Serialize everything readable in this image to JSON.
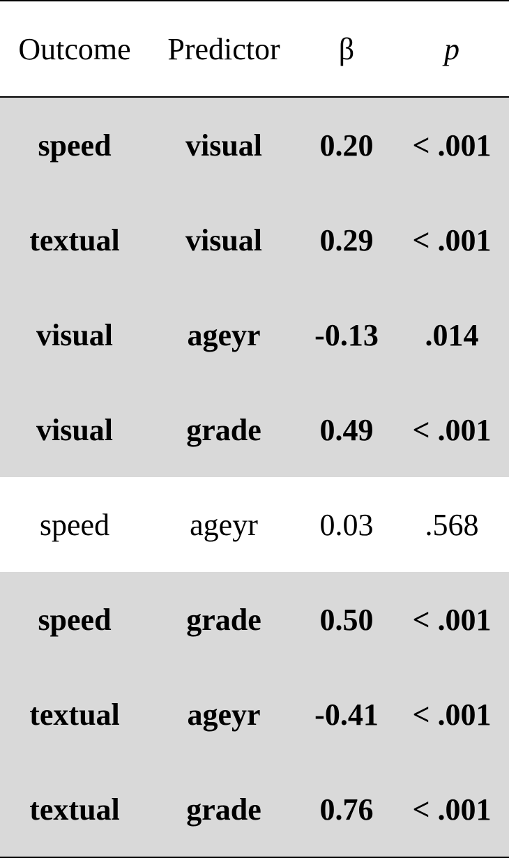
{
  "table": {
    "headers": {
      "outcome": "Outcome",
      "predictor": "Predictor",
      "beta": "β",
      "p": "p"
    },
    "rows": [
      {
        "outcome": "speed",
        "predictor": "visual",
        "beta": "0.20",
        "p": "< .001",
        "significant": true
      },
      {
        "outcome": "textual",
        "predictor": "visual",
        "beta": "0.29",
        "p": "< .001",
        "significant": true
      },
      {
        "outcome": "visual",
        "predictor": "ageyr",
        "beta": "-0.13",
        "p": ".014",
        "significant": true
      },
      {
        "outcome": "visual",
        "predictor": "grade",
        "beta": "0.49",
        "p": "< .001",
        "significant": true
      },
      {
        "outcome": "speed",
        "predictor": "ageyr",
        "beta": "0.03",
        "p": ".568",
        "significant": false
      },
      {
        "outcome": "speed",
        "predictor": "grade",
        "beta": "0.50",
        "p": "< .001",
        "significant": true
      },
      {
        "outcome": "textual",
        "predictor": "ageyr",
        "beta": "-0.41",
        "p": "< .001",
        "significant": true
      },
      {
        "outcome": "textual",
        "predictor": "grade",
        "beta": "0.76",
        "p": "< .001",
        "significant": true
      }
    ],
    "colors": {
      "highlight_row": "#d9d9d9",
      "plain_row": "#ffffff",
      "text": "#000000"
    }
  }
}
